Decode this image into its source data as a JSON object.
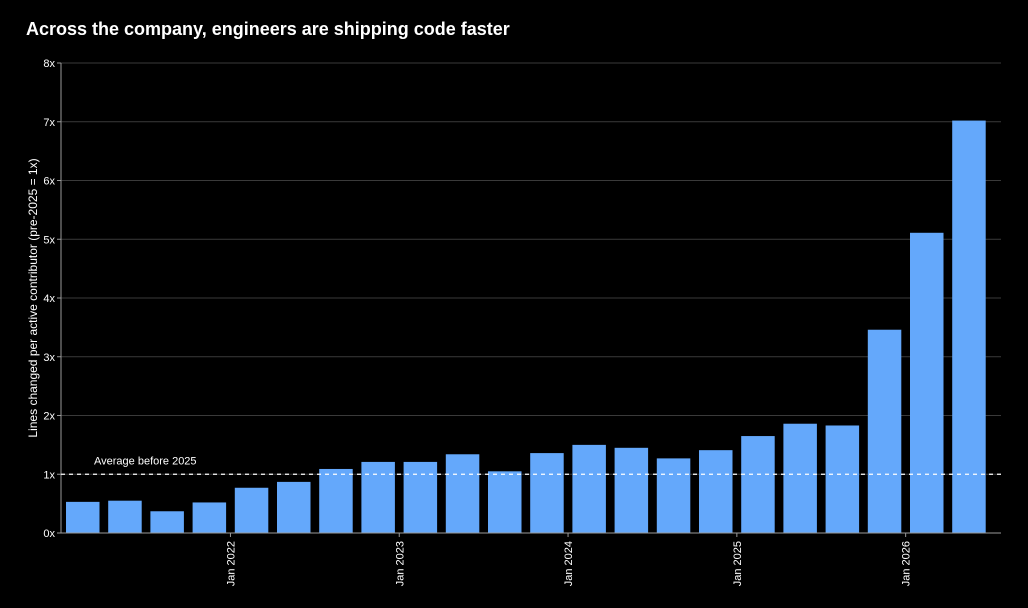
{
  "chart_data": {
    "type": "bar",
    "title": "Across the company, engineers are shipping code faster",
    "ylabel": "Lines changed per active contributor (pre-2025 = 1x)",
    "xlabel": "",
    "ylim": [
      0,
      8
    ],
    "yticks": [
      0,
      1,
      2,
      3,
      4,
      5,
      6,
      7,
      8
    ],
    "ytick_labels": [
      "0x",
      "1x",
      "2x",
      "3x",
      "4x",
      "5x",
      "6x",
      "7x",
      "8x"
    ],
    "x_tick_labels": [
      {
        "label": "Jan 2022",
        "after_bar": 3
      },
      {
        "label": "Jan 2023",
        "after_bar": 7
      },
      {
        "label": "Jan 2024",
        "after_bar": 11
      },
      {
        "label": "Jan 2025",
        "after_bar": 15
      },
      {
        "label": "Jan 2026",
        "after_bar": 19
      }
    ],
    "values": [
      0.53,
      0.55,
      0.37,
      0.52,
      0.77,
      0.87,
      1.09,
      1.21,
      1.21,
      1.34,
      1.05,
      1.36,
      1.5,
      1.45,
      1.27,
      1.41,
      1.65,
      1.86,
      1.83,
      3.46,
      5.11,
      7.02
    ],
    "reference_line": {
      "value": 1,
      "label": "Average before 2025",
      "style": "dashed"
    },
    "grid": true,
    "colors": {
      "bar": "#64a8fb",
      "background": "#000000",
      "grid": "#3a3a3a",
      "text": "#ffffff",
      "reference_line": "#ffffff"
    }
  }
}
